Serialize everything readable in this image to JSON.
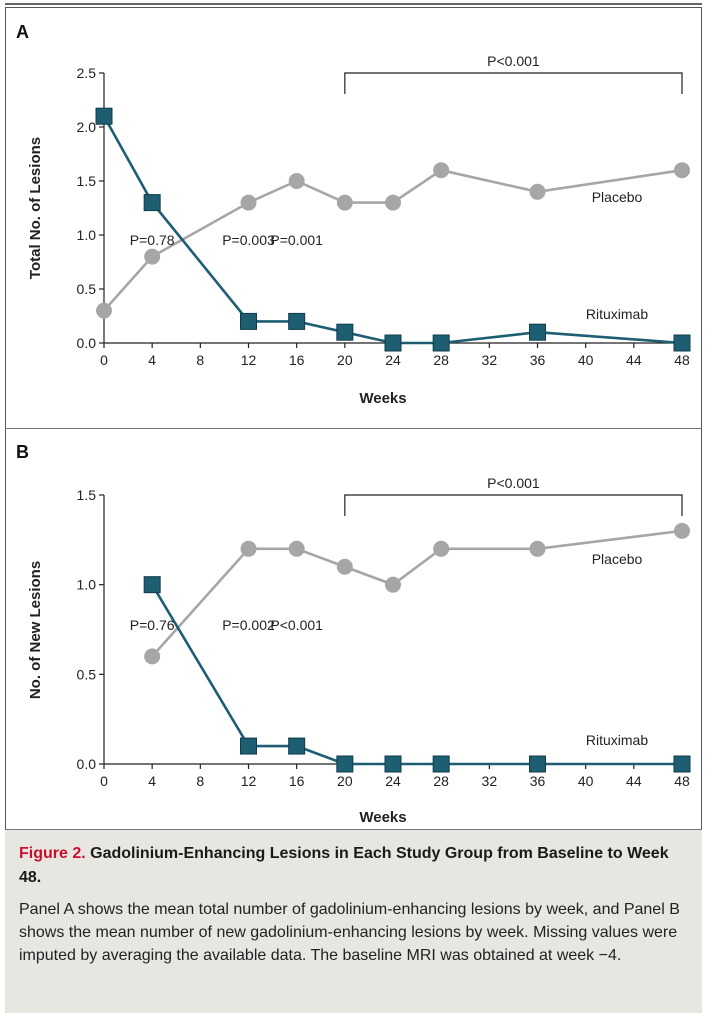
{
  "chart_data": [
    {
      "panel_label": "A",
      "type": "line",
      "ylabel": "Total No. of Lesions",
      "xlabel": "Weeks",
      "ylim": [
        0,
        2.5
      ],
      "yticks": [
        "0.0",
        "0.5",
        "1.0",
        "1.5",
        "2.0",
        "2.5"
      ],
      "xticks": [
        0,
        4,
        8,
        12,
        16,
        20,
        24,
        28,
        32,
        36,
        40,
        44,
        48
      ],
      "series": [
        {
          "name": "Placebo",
          "color": "#a6a6a6",
          "marker": "circle",
          "x": [
            0,
            4,
            12,
            16,
            20,
            24,
            28,
            36,
            48
          ],
          "y": [
            0.3,
            0.8,
            1.3,
            1.5,
            1.3,
            1.3,
            1.6,
            1.4,
            1.6
          ]
        },
        {
          "name": "Rituximab",
          "color": "#1d5e73",
          "marker": "square",
          "x": [
            0,
            4,
            12,
            16,
            20,
            24,
            28,
            36,
            48
          ],
          "y": [
            2.1,
            1.3,
            0.2,
            0.2,
            0.1,
            0.0,
            0.0,
            0.1,
            0.0
          ]
        }
      ],
      "pvalues": [
        {
          "text": "P=0.78",
          "x": 4
        },
        {
          "text": "P=0.003",
          "x": 12
        },
        {
          "text": "P=0.001",
          "x": 16
        }
      ],
      "bracket": {
        "text": "P<0.001",
        "from": 20,
        "to": 48
      }
    },
    {
      "panel_label": "B",
      "type": "line",
      "ylabel": "No. of New Lesions",
      "xlabel": "Weeks",
      "ylim": [
        0,
        1.5
      ],
      "yticks": [
        "0.0",
        "0.5",
        "1.0",
        "1.5"
      ],
      "xticks": [
        0,
        4,
        8,
        12,
        16,
        20,
        24,
        28,
        32,
        36,
        40,
        44,
        48
      ],
      "series": [
        {
          "name": "Placebo",
          "color": "#a6a6a6",
          "marker": "circle",
          "x": [
            4,
            12,
            16,
            20,
            24,
            28,
            36,
            48
          ],
          "y": [
            0.6,
            1.2,
            1.2,
            1.1,
            1.0,
            1.2,
            1.2,
            1.3
          ]
        },
        {
          "name": "Rituximab",
          "color": "#1d5e73",
          "marker": "square",
          "x": [
            4,
            12,
            16,
            20,
            24,
            28,
            36,
            48
          ],
          "y": [
            1.0,
            0.1,
            0.1,
            0.0,
            0.0,
            0.0,
            0.0,
            0.0
          ]
        }
      ],
      "pvalues": [
        {
          "text": "P=0.76",
          "x": 4
        },
        {
          "text": "P=0.002",
          "x": 12
        },
        {
          "text": "P<0.001",
          "x": 16
        }
      ],
      "bracket": {
        "text": "P<0.001",
        "from": 20,
        "to": 48
      }
    }
  ],
  "caption": {
    "label": "Figure 2.",
    "title": "Gadolinium-Enhancing Lesions in Each Study Group from Baseline to Week 48.",
    "body": "Panel A shows the mean total number of gadolinium-enhancing lesions by week, and Panel B shows the mean number of new gadolinium-enhancing lesions by week. Missing values were imputed by averaging the available data. The baseline MRI was obtained at week −4."
  }
}
